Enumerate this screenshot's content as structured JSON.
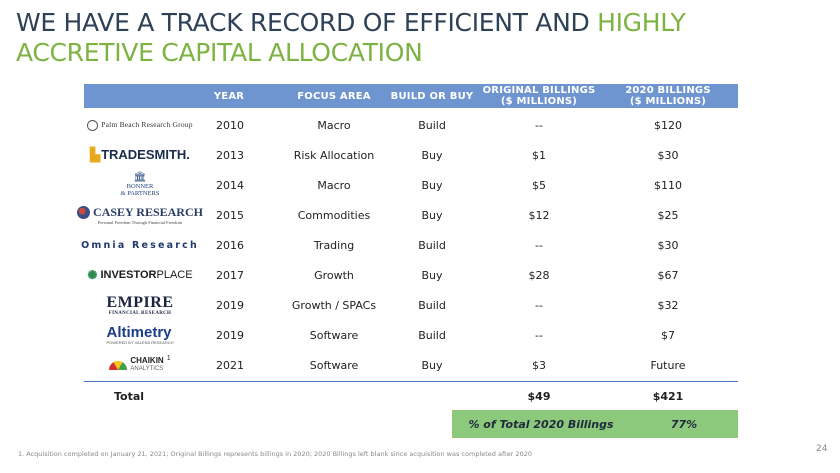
{
  "slide": {
    "title_part1": "WE HAVE A TRACK RECORD OF EFFICIENT AND ",
    "title_part2": "HIGHLY ACCRETIVE CAPITAL ALLOCATION",
    "page_number": "24",
    "footnote": "1. Acquisition completed on January 21, 2021; Original Billings represents billings in 2020; 2020 Billings left blank since acquisition was completed after 2020"
  },
  "colors": {
    "title": "#2f4156",
    "accent": "#7cb342",
    "header_bg": "#6f95d1",
    "summary_bg": "#8cc97d"
  },
  "table": {
    "headers": {
      "year": "YEAR",
      "focus": "FOCUS AREA",
      "build": "BUILD OR BUY",
      "orig_line1": "ORIGINAL BILLINGS",
      "orig_line2": "($ MILLIONS)",
      "b2020_line1": "2020 BILLINGS",
      "b2020_line2": "($ MILLIONS)"
    },
    "rows": [
      {
        "logo_text": "Palm Beach Research Group",
        "year": "2010",
        "focus": "Macro",
        "build": "Build",
        "orig": "--",
        "b2020": "$120"
      },
      {
        "logo_text": "TRADESMITH.",
        "year": "2013",
        "focus": "Risk Allocation",
        "build": "Buy",
        "orig": "$1",
        "b2020": "$30"
      },
      {
        "logo_text_1": "BONNER",
        "logo_text_2": "& PARTNERS",
        "year": "2014",
        "focus": "Macro",
        "build": "Buy",
        "orig": "$5",
        "b2020": "$110"
      },
      {
        "logo_text": "CASEY RESEARCH",
        "logo_tag": "Personal Freedom Through Financial Freedom",
        "year": "2015",
        "focus": "Commodities",
        "build": "Buy",
        "orig": "$12",
        "b2020": "$25"
      },
      {
        "logo_text": "Omnia Research",
        "year": "2016",
        "focus": "Trading",
        "build": "Build",
        "orig": "--",
        "b2020": "$30"
      },
      {
        "logo_text_1": "INVESTOR",
        "logo_text_2": "PLACE",
        "year": "2017",
        "focus": "Growth",
        "build": "Buy",
        "orig": "$28",
        "b2020": "$67"
      },
      {
        "logo_text_1": "EMPIRE",
        "logo_text_2": "FINANCIAL RESEARCH",
        "year": "2019",
        "focus": "Growth / SPACs",
        "build": "Build",
        "orig": "--",
        "b2020": "$32"
      },
      {
        "logo_text_1": "Altimetry",
        "logo_text_2": "POWERED BY VALENS RESEARCH",
        "year": "2019",
        "focus": "Software",
        "build": "Build",
        "orig": "--",
        "b2020": "$7"
      },
      {
        "logo_text_1": "CHAIKIN",
        "logo_text_2": "ANALYTICS",
        "logo_sup": "1",
        "year": "2021",
        "focus": "Software",
        "build": "Buy",
        "orig": "$3",
        "b2020": "Future"
      }
    ],
    "total": {
      "label": "Total",
      "orig": "$49",
      "b2020": "$421"
    },
    "summary": {
      "label": "% of Total 2020 Billings",
      "value": "77%"
    }
  }
}
